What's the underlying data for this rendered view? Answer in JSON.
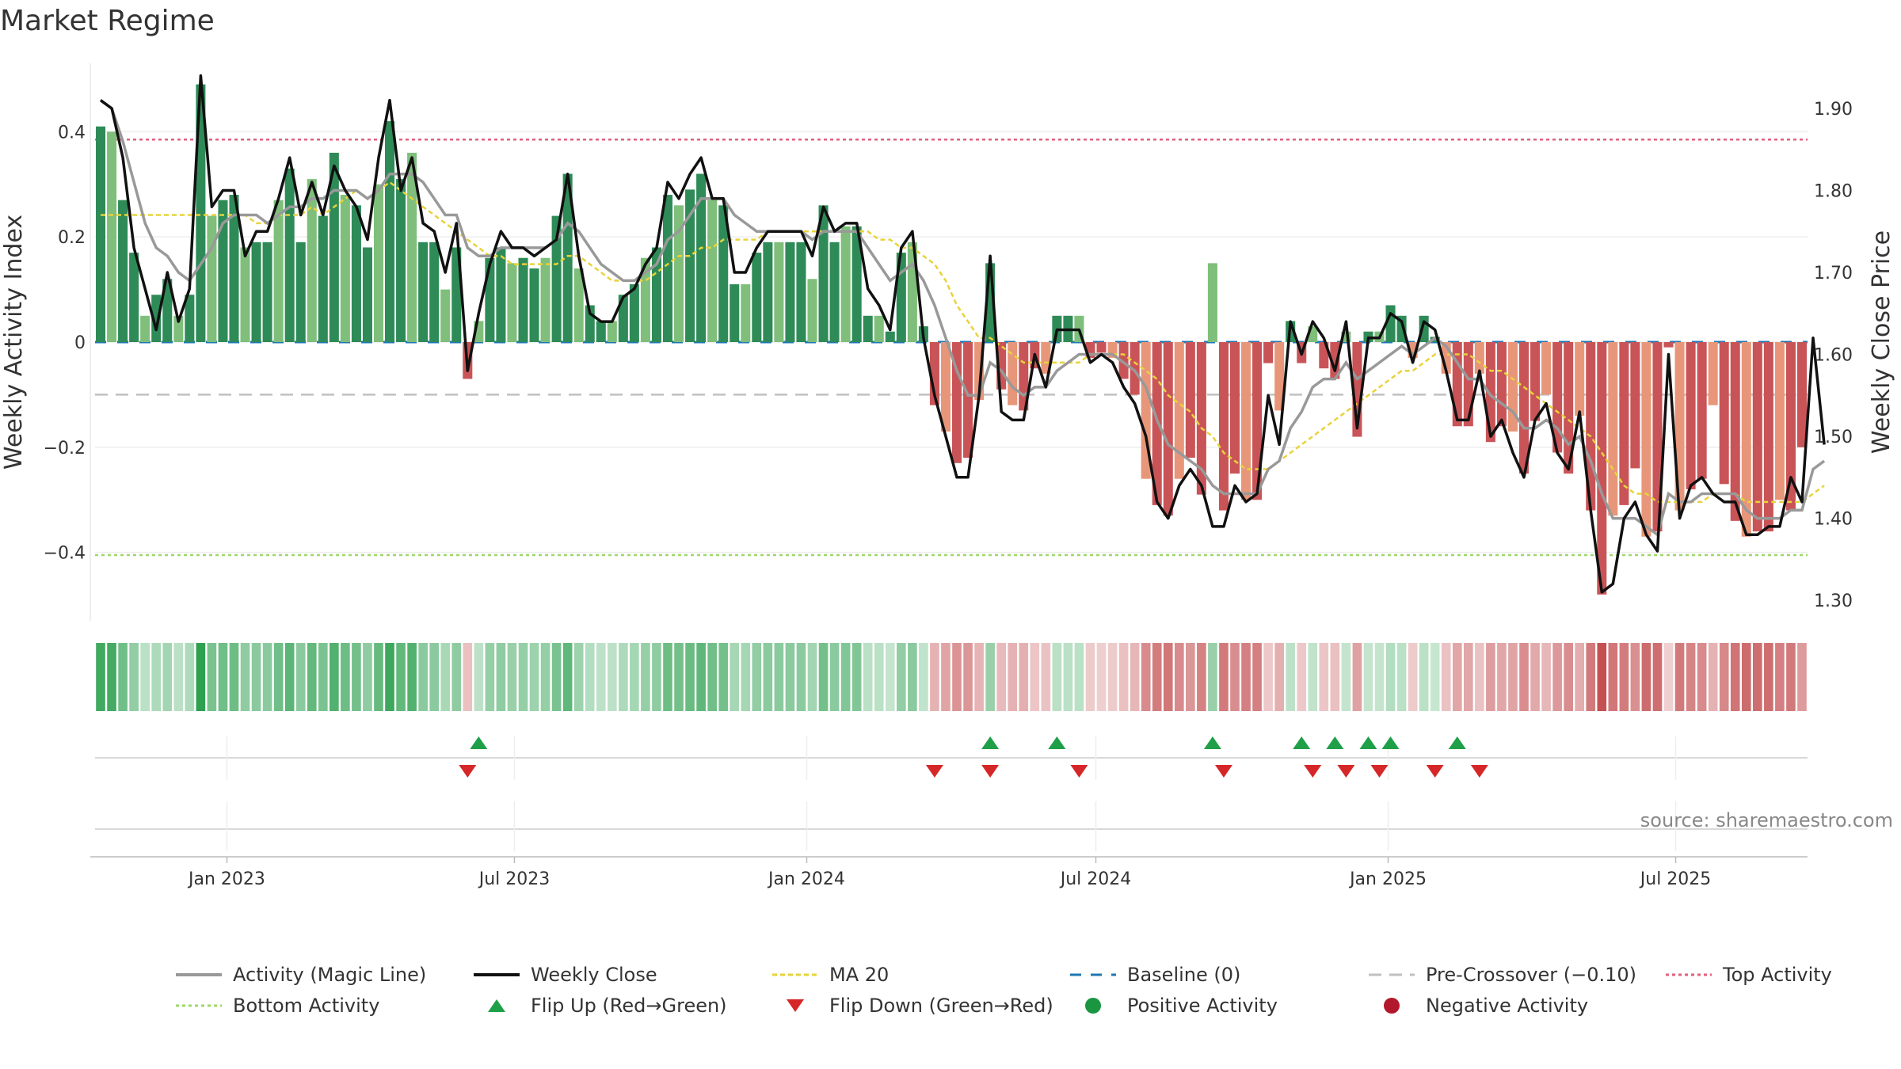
{
  "title": "Market Regime",
  "source": "source: sharemaestro.com",
  "colors": {
    "pos_dark": "#2e8b57",
    "pos_light": "#7fbf7b",
    "neg_dark": "#c95457",
    "neg_light": "#e8967a",
    "magic_line": "#999999",
    "close_line": "#111111",
    "ma_line": "#e8d33a",
    "baseline": "#1f77b4",
    "pre_crossover": "#c0c0c0",
    "top_line": "#e0607e",
    "bottom_line": "#9dd86a",
    "flip_up": "#1fa048",
    "flip_down": "#d62728",
    "pos_marker": "#1a9641",
    "neg_marker": "#b2182b"
  },
  "chart_data": {
    "type": "bar",
    "title": "Market Regime",
    "ylabel": "Weekly Activity Index",
    "ylabel_right": "Weekly Close Price",
    "ylim": [
      -0.53,
      0.53
    ],
    "ylim_right": [
      1.275,
      1.955
    ],
    "yticks": [
      {
        "value": 0.4,
        "label": "0.4"
      },
      {
        "value": 0.2,
        "label": "0.2"
      },
      {
        "value": 0,
        "label": "0"
      },
      {
        "value": -0.2,
        "label": "−0.2"
      },
      {
        "value": -0.4,
        "label": "−0.4"
      }
    ],
    "yticks_right": [
      {
        "value": 1.9,
        "label": "1.90"
      },
      {
        "value": 1.8,
        "label": "1.80"
      },
      {
        "value": 1.7,
        "label": "1.70"
      },
      {
        "value": 1.6,
        "label": "1.60"
      },
      {
        "value": 1.5,
        "label": "1.50"
      },
      {
        "value": 1.4,
        "label": "1.40"
      },
      {
        "value": 1.3,
        "label": "1.30"
      }
    ],
    "x_start": "2022-10-10",
    "x_end": "2025-09-22",
    "xticks": [
      {
        "date": "2023-01-01",
        "label": "Jan 2023"
      },
      {
        "date": "2023-07-01",
        "label": "Jul 2023"
      },
      {
        "date": "2024-01-01",
        "label": "Jan 2024"
      },
      {
        "date": "2024-07-01",
        "label": "Jul 2024"
      },
      {
        "date": "2025-01-01",
        "label": "Jan 2025"
      },
      {
        "date": "2025-07-01",
        "label": "Jul 2025"
      }
    ],
    "grid": true,
    "legend_position": "bottom",
    "reference_lines": {
      "top_activity": 0.385,
      "bottom_activity": -0.405,
      "baseline": 0,
      "pre_crossover": -0.1
    },
    "activity": [
      0.41,
      0.4,
      0.27,
      0.17,
      0.05,
      0.09,
      0.12,
      0.05,
      0.09,
      0.49,
      0.24,
      0.27,
      0.28,
      0.18,
      0.19,
      0.19,
      0.27,
      0.33,
      0.19,
      0.31,
      0.24,
      0.36,
      0.28,
      0.26,
      0.18,
      0.3,
      0.42,
      0.31,
      0.36,
      0.19,
      0.19,
      0.1,
      0.18,
      -0.07,
      0.04,
      0.16,
      0.18,
      0.15,
      0.16,
      0.14,
      0.16,
      0.24,
      0.32,
      0.14,
      0.07,
      0.04,
      0.04,
      0.09,
      0.11,
      0.16,
      0.18,
      0.28,
      0.26,
      0.29,
      0.32,
      0.27,
      0.26,
      0.11,
      0.11,
      0.17,
      0.19,
      0.19,
      0.19,
      0.19,
      0.12,
      0.26,
      0.19,
      0.22,
      0.22,
      0.05,
      0.05,
      0.02,
      0.17,
      0.19,
      0.03,
      -0.12,
      -0.17,
      -0.23,
      -0.22,
      -0.11,
      0.15,
      -0.09,
      -0.12,
      -0.13,
      -0.05,
      -0.06,
      0.05,
      0.05,
      0.05,
      -0.03,
      -0.02,
      -0.03,
      -0.07,
      -0.1,
      -0.26,
      -0.31,
      -0.33,
      -0.26,
      -0.22,
      -0.29,
      0.15,
      -0.32,
      -0.25,
      -0.3,
      -0.3,
      -0.04,
      -0.13,
      0.04,
      -0.04,
      0.03,
      -0.05,
      -0.07,
      0.02,
      -0.18,
      0.02,
      0.02,
      0.07,
      0.05,
      -0.03,
      0.05,
      0.01,
      -0.06,
      -0.16,
      -0.16,
      -0.06,
      -0.19,
      -0.16,
      -0.17,
      -0.25,
      -0.15,
      -0.1,
      -0.21,
      -0.25,
      -0.14,
      -0.32,
      -0.48,
      -0.33,
      -0.31,
      -0.24,
      -0.37,
      -0.36,
      -0.01,
      -0.32,
      -0.28,
      -0.26,
      -0.12,
      -0.27,
      -0.34,
      -0.37,
      -0.36,
      -0.36,
      -0.3,
      -0.32,
      -0.2
    ],
    "close": [
      1.91,
      1.9,
      1.84,
      1.73,
      1.68,
      1.63,
      1.7,
      1.64,
      1.68,
      1.94,
      1.78,
      1.8,
      1.8,
      1.72,
      1.75,
      1.75,
      1.79,
      1.84,
      1.77,
      1.81,
      1.77,
      1.83,
      1.8,
      1.78,
      1.74,
      1.84,
      1.91,
      1.8,
      1.84,
      1.76,
      1.75,
      1.7,
      1.76,
      1.58,
      1.65,
      1.71,
      1.75,
      1.73,
      1.73,
      1.72,
      1.73,
      1.74,
      1.82,
      1.72,
      1.65,
      1.64,
      1.64,
      1.67,
      1.68,
      1.71,
      1.73,
      1.81,
      1.79,
      1.82,
      1.84,
      1.79,
      1.79,
      1.7,
      1.7,
      1.73,
      1.75,
      1.75,
      1.75,
      1.75,
      1.72,
      1.78,
      1.75,
      1.76,
      1.76,
      1.68,
      1.66,
      1.63,
      1.73,
      1.75,
      1.62,
      1.55,
      1.5,
      1.45,
      1.45,
      1.55,
      1.72,
      1.53,
      1.52,
      1.52,
      1.6,
      1.56,
      1.63,
      1.63,
      1.63,
      1.59,
      1.6,
      1.59,
      1.56,
      1.54,
      1.5,
      1.42,
      1.4,
      1.44,
      1.46,
      1.44,
      1.39,
      1.39,
      1.44,
      1.42,
      1.43,
      1.55,
      1.49,
      1.64,
      1.6,
      1.64,
      1.62,
      1.58,
      1.64,
      1.51,
      1.62,
      1.62,
      1.65,
      1.64,
      1.59,
      1.64,
      1.63,
      1.58,
      1.52,
      1.52,
      1.58,
      1.5,
      1.52,
      1.48,
      1.45,
      1.52,
      1.54,
      1.48,
      1.46,
      1.53,
      1.41,
      1.31,
      1.32,
      1.4,
      1.42,
      1.38,
      1.36,
      1.6,
      1.4,
      1.44,
      1.45,
      1.43,
      1.42,
      1.42,
      1.38,
      1.38,
      1.39,
      1.39,
      1.45,
      1.42,
      1.62,
      1.49
    ],
    "magic_line": [
      1.91,
      1.9,
      1.86,
      1.81,
      1.76,
      1.73,
      1.72,
      1.7,
      1.69,
      1.71,
      1.73,
      1.76,
      1.77,
      1.77,
      1.77,
      1.76,
      1.77,
      1.78,
      1.78,
      1.79,
      1.79,
      1.8,
      1.8,
      1.8,
      1.79,
      1.8,
      1.82,
      1.82,
      1.82,
      1.81,
      1.79,
      1.77,
      1.77,
      1.73,
      1.72,
      1.72,
      1.73,
      1.73,
      1.73,
      1.73,
      1.73,
      1.74,
      1.76,
      1.75,
      1.73,
      1.71,
      1.7,
      1.69,
      1.69,
      1.7,
      1.71,
      1.74,
      1.75,
      1.77,
      1.79,
      1.79,
      1.79,
      1.77,
      1.76,
      1.75,
      1.75,
      1.75,
      1.75,
      1.75,
      1.74,
      1.75,
      1.75,
      1.75,
      1.75,
      1.73,
      1.71,
      1.69,
      1.7,
      1.71,
      1.69,
      1.66,
      1.62,
      1.58,
      1.55,
      1.55,
      1.59,
      1.58,
      1.56,
      1.55,
      1.56,
      1.56,
      1.58,
      1.59,
      1.6,
      1.6,
      1.6,
      1.6,
      1.59,
      1.58,
      1.56,
      1.52,
      1.49,
      1.48,
      1.47,
      1.46,
      1.44,
      1.43,
      1.43,
      1.43,
      1.43,
      1.46,
      1.47,
      1.51,
      1.53,
      1.56,
      1.57,
      1.57,
      1.59,
      1.57,
      1.58,
      1.59,
      1.6,
      1.61,
      1.6,
      1.61,
      1.62,
      1.61,
      1.59,
      1.57,
      1.57,
      1.55,
      1.54,
      1.53,
      1.51,
      1.51,
      1.52,
      1.51,
      1.49,
      1.5,
      1.47,
      1.43,
      1.4,
      1.4,
      1.4,
      1.39,
      1.38,
      1.43,
      1.42,
      1.42,
      1.43,
      1.43,
      1.43,
      1.43,
      1.41,
      1.4,
      1.4,
      1.4,
      1.41,
      1.41,
      1.46,
      1.47
    ],
    "ma20": [
      1.77,
      1.77,
      1.77,
      1.77,
      1.77,
      1.77,
      1.77,
      1.77,
      1.77,
      1.77,
      1.77,
      1.77,
      1.77,
      1.77,
      1.76,
      1.76,
      1.77,
      1.77,
      1.77,
      1.78,
      1.77,
      1.78,
      1.79,
      1.8,
      1.79,
      1.8,
      1.81,
      1.8,
      1.79,
      1.78,
      1.77,
      1.76,
      1.75,
      1.74,
      1.73,
      1.72,
      1.72,
      1.71,
      1.71,
      1.71,
      1.71,
      1.71,
      1.72,
      1.72,
      1.71,
      1.7,
      1.69,
      1.69,
      1.69,
      1.69,
      1.7,
      1.71,
      1.72,
      1.72,
      1.73,
      1.73,
      1.74,
      1.74,
      1.74,
      1.74,
      1.75,
      1.75,
      1.75,
      1.75,
      1.75,
      1.75,
      1.75,
      1.75,
      1.75,
      1.75,
      1.74,
      1.74,
      1.73,
      1.73,
      1.72,
      1.71,
      1.69,
      1.66,
      1.64,
      1.62,
      1.62,
      1.61,
      1.6,
      1.59,
      1.59,
      1.59,
      1.59,
      1.59,
      1.59,
      1.6,
      1.6,
      1.6,
      1.6,
      1.59,
      1.58,
      1.57,
      1.55,
      1.54,
      1.53,
      1.51,
      1.5,
      1.48,
      1.47,
      1.46,
      1.46,
      1.46,
      1.47,
      1.48,
      1.49,
      1.5,
      1.51,
      1.52,
      1.53,
      1.54,
      1.55,
      1.56,
      1.57,
      1.58,
      1.58,
      1.59,
      1.6,
      1.6,
      1.6,
      1.6,
      1.59,
      1.58,
      1.58,
      1.57,
      1.56,
      1.55,
      1.54,
      1.53,
      1.52,
      1.51,
      1.5,
      1.48,
      1.46,
      1.44,
      1.43,
      1.43,
      1.42,
      1.42,
      1.42,
      1.42,
      1.42,
      1.43,
      1.43,
      1.43,
      1.42,
      1.42,
      1.42,
      1.42,
      1.42,
      1.42,
      1.43,
      1.44
    ],
    "flip_up_indices": [
      34,
      80,
      86,
      100,
      108,
      111,
      114,
      116,
      122
    ],
    "flip_down_indices": [
      33,
      75,
      80,
      88,
      101,
      109,
      112,
      115,
      120,
      124
    ]
  },
  "legend": {
    "row1": [
      "Activity (Magic Line)",
      "Weekly Close",
      "MA 20",
      "Baseline (0)",
      "Pre-Crossover (−0.10)",
      "Top Activity"
    ],
    "row2": [
      "Bottom Activity",
      "Flip Up (Red→Green)",
      "Flip Down (Green→Red)",
      "Positive Activity",
      "Negative Activity"
    ]
  }
}
